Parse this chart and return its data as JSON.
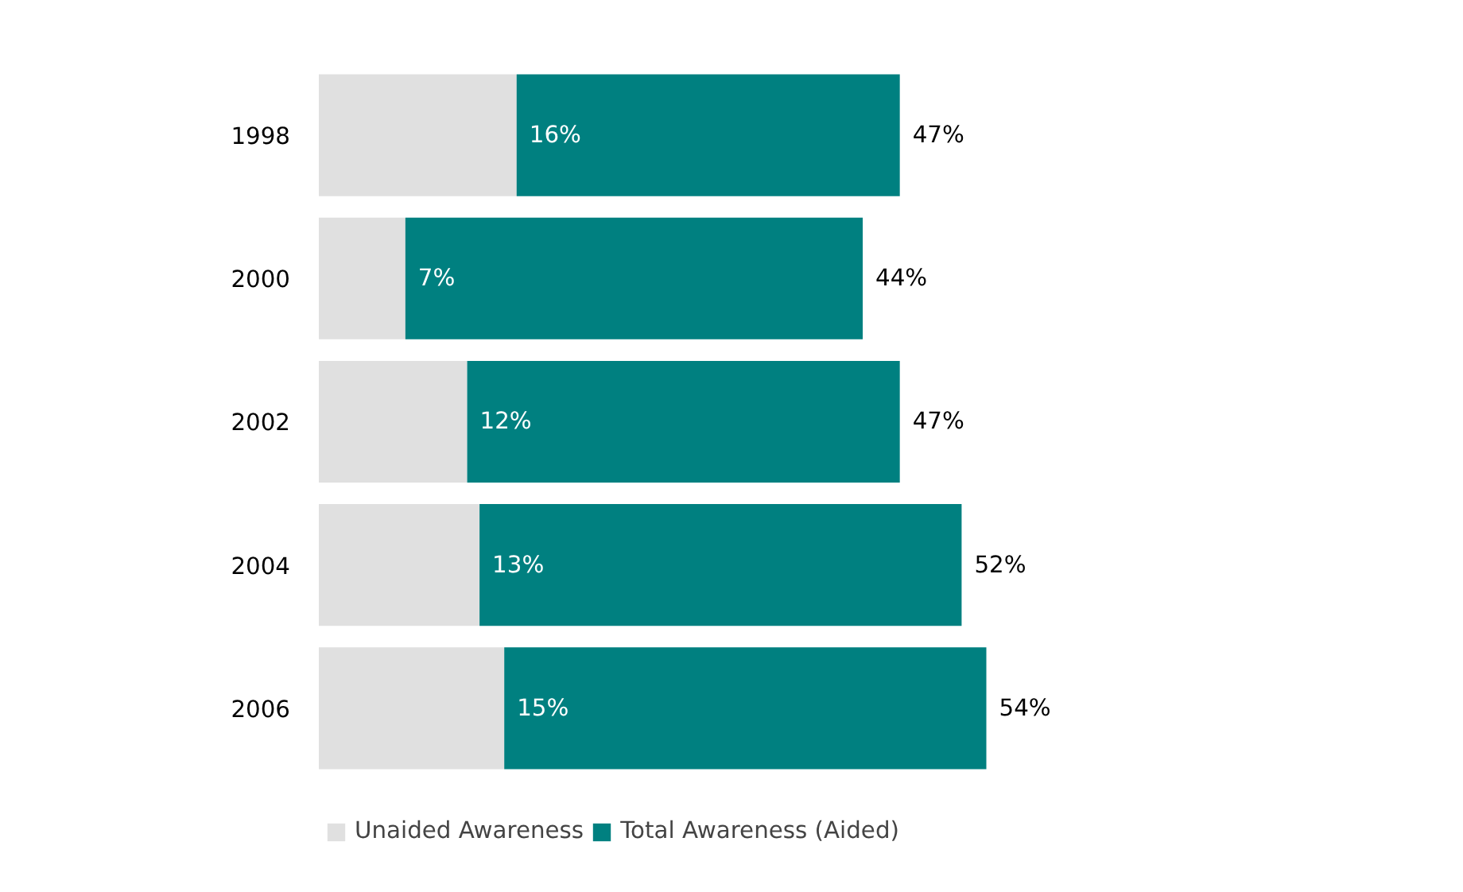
{
  "chart_data": {
    "type": "bar",
    "orientation": "horizontal",
    "stacked": true,
    "categories": [
      "1998",
      "2000",
      "2002",
      "2004",
      "2006"
    ],
    "series": [
      {
        "name": "Unaided Awareness",
        "color": "#e0e0e0",
        "values": [
          16,
          7,
          12,
          13,
          15
        ],
        "value_labels": [
          "16%",
          "7%",
          "12%",
          "13%",
          "15%"
        ]
      },
      {
        "name": "Total Awareness (Aided)",
        "color": "#008080",
        "values": [
          31,
          37,
          35,
          39,
          39
        ]
      }
    ],
    "totals": [
      "47%",
      "44%",
      "47%",
      "52%",
      "54%"
    ],
    "legend": "bottom",
    "tick_labels": "y",
    "grid": false
  }
}
